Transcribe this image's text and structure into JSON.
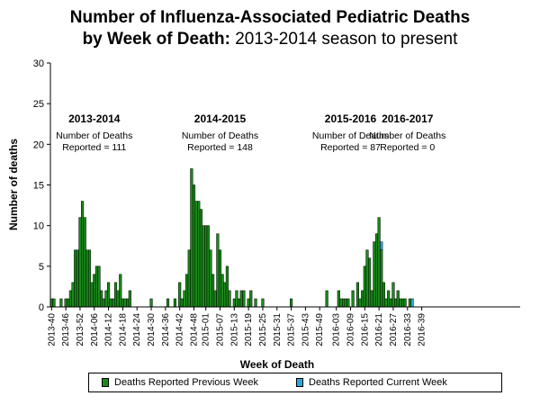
{
  "title": {
    "line1": "Number of Influenza-Associated Pediatric Deaths",
    "line2_bold": "by Week of Death:",
    "line2_rest": " 2013-2014 season to present"
  },
  "colors": {
    "previous": "#1a8a1a",
    "current": "#29a9d9"
  },
  "chart_data": {
    "type": "bar",
    "stacked": true,
    "xlabel": "Week of Death",
    "ylabel": "Number of deaths",
    "ylim": [
      0,
      30
    ],
    "yticks": [
      0,
      5,
      10,
      15,
      20,
      25,
      30
    ],
    "first_week": "2013-40",
    "tick_labels": [
      "2013-40",
      "2013-46",
      "2013-52",
      "2014-06",
      "2014-12",
      "2014-18",
      "2014-24",
      "2014-30",
      "2014-36",
      "2014-42",
      "2014-48",
      "2015-01",
      "2015-07",
      "2015-13",
      "2015-19",
      "2015-25",
      "2015-31",
      "2015-37",
      "2015-43",
      "2015-49",
      "2016-03",
      "2016-09",
      "2016-15",
      "2016-21",
      "2016-27",
      "2016-33",
      "2016-39"
    ],
    "series": [
      {
        "name": "Deaths Reported Previous Week",
        "values": [
          1,
          1,
          0,
          0,
          1,
          0,
          1,
          1,
          2,
          3,
          7,
          7,
          11,
          13,
          11,
          7,
          7,
          3,
          4,
          5,
          5,
          2,
          1,
          2,
          3,
          1,
          1,
          3,
          2,
          4,
          1,
          1,
          1,
          2,
          0,
          0,
          0,
          0,
          0,
          0,
          0,
          0,
          1,
          0,
          0,
          0,
          0,
          0,
          0,
          1,
          0,
          0,
          1,
          0,
          3,
          1,
          2,
          4,
          7,
          17,
          15,
          13,
          13,
          12,
          10,
          10,
          10,
          7,
          4,
          2,
          9,
          7,
          4,
          3,
          5,
          2,
          0,
          1,
          2,
          1,
          2,
          2,
          0,
          1,
          2,
          0,
          1,
          0,
          0,
          1,
          0,
          0,
          0,
          0,
          0,
          0,
          0,
          0,
          0,
          0,
          0,
          1,
          0,
          0,
          0,
          0,
          0,
          0,
          0,
          0,
          0,
          0,
          0,
          0,
          0,
          0,
          2,
          0,
          0,
          0,
          0,
          2,
          1,
          1,
          1,
          1,
          0,
          2,
          0,
          3,
          1,
          2,
          5,
          7,
          6,
          2,
          8,
          9,
          11,
          7,
          3,
          1,
          2,
          1,
          3,
          1,
          2,
          1,
          1,
          1,
          0,
          1,
          0,
          0,
          0,
          0,
          0,
          0,
          0,
          0,
          0,
          0,
          0,
          0,
          0,
          0,
          0,
          0,
          0,
          0,
          0,
          0,
          0,
          0,
          0,
          0,
          0,
          0,
          0,
          0,
          0,
          0,
          0,
          0,
          0,
          0,
          0,
          0,
          0,
          0,
          0,
          0,
          0,
          0,
          0,
          0,
          0,
          0
        ]
      },
      {
        "name": "Deaths Reported Current Week",
        "values": [
          0,
          0,
          0,
          0,
          0,
          0,
          0,
          0,
          0,
          0,
          0,
          0,
          0,
          0,
          0,
          0,
          0,
          0,
          0,
          0,
          0,
          0,
          0,
          0,
          0,
          0,
          0,
          0,
          0,
          0,
          0,
          0,
          0,
          0,
          0,
          0,
          0,
          0,
          0,
          0,
          0,
          0,
          0,
          0,
          0,
          0,
          0,
          0,
          0,
          0,
          0,
          0,
          0,
          0,
          0,
          0,
          0,
          0,
          0,
          0,
          0,
          0,
          0,
          0,
          0,
          0,
          0,
          0,
          0,
          0,
          0,
          0,
          0,
          0,
          0,
          0,
          0,
          0,
          0,
          0,
          0,
          0,
          0,
          0,
          0,
          0,
          0,
          0,
          0,
          0,
          0,
          0,
          0,
          0,
          0,
          0,
          0,
          0,
          0,
          0,
          0,
          0,
          0,
          0,
          0,
          0,
          0,
          0,
          0,
          0,
          0,
          0,
          0,
          0,
          0,
          0,
          0,
          0,
          0,
          0,
          0,
          0,
          0,
          0,
          0,
          0,
          0,
          0,
          0,
          0,
          0,
          0,
          0,
          0,
          0,
          0,
          0,
          0,
          0,
          1,
          0,
          0,
          0,
          0,
          0,
          0,
          0,
          0,
          0,
          0,
          0,
          0,
          1,
          0,
          0,
          0,
          0,
          0,
          0,
          0,
          0,
          0,
          0,
          0,
          0,
          0,
          0,
          0,
          0,
          0,
          0,
          0,
          0,
          0,
          0,
          0,
          0,
          0,
          0,
          0,
          0,
          0,
          0,
          0,
          0,
          0,
          0,
          0,
          0,
          0,
          0,
          0,
          0,
          0,
          0,
          0,
          0,
          0,
          0,
          0,
          0,
          0
        ]
      }
    ],
    "annotations": [
      {
        "season": "2013-2014",
        "line1": "Number of Deaths",
        "line2": "Reported = 111",
        "week": "2014-06"
      },
      {
        "season": "2014-2015",
        "line1": "Number of Deaths",
        "line2": "Reported = 148",
        "week": "2015-07"
      },
      {
        "season": "2015-2016",
        "line1": "Number of Deaths",
        "line2": "Reported = 87",
        "week": "2016-09"
      },
      {
        "season": "2016-2017",
        "line1": "Number of Deaths",
        "line2": "Reported = 0",
        "week": "2016-33"
      }
    ],
    "grid": false,
    "legend": "bottom"
  }
}
